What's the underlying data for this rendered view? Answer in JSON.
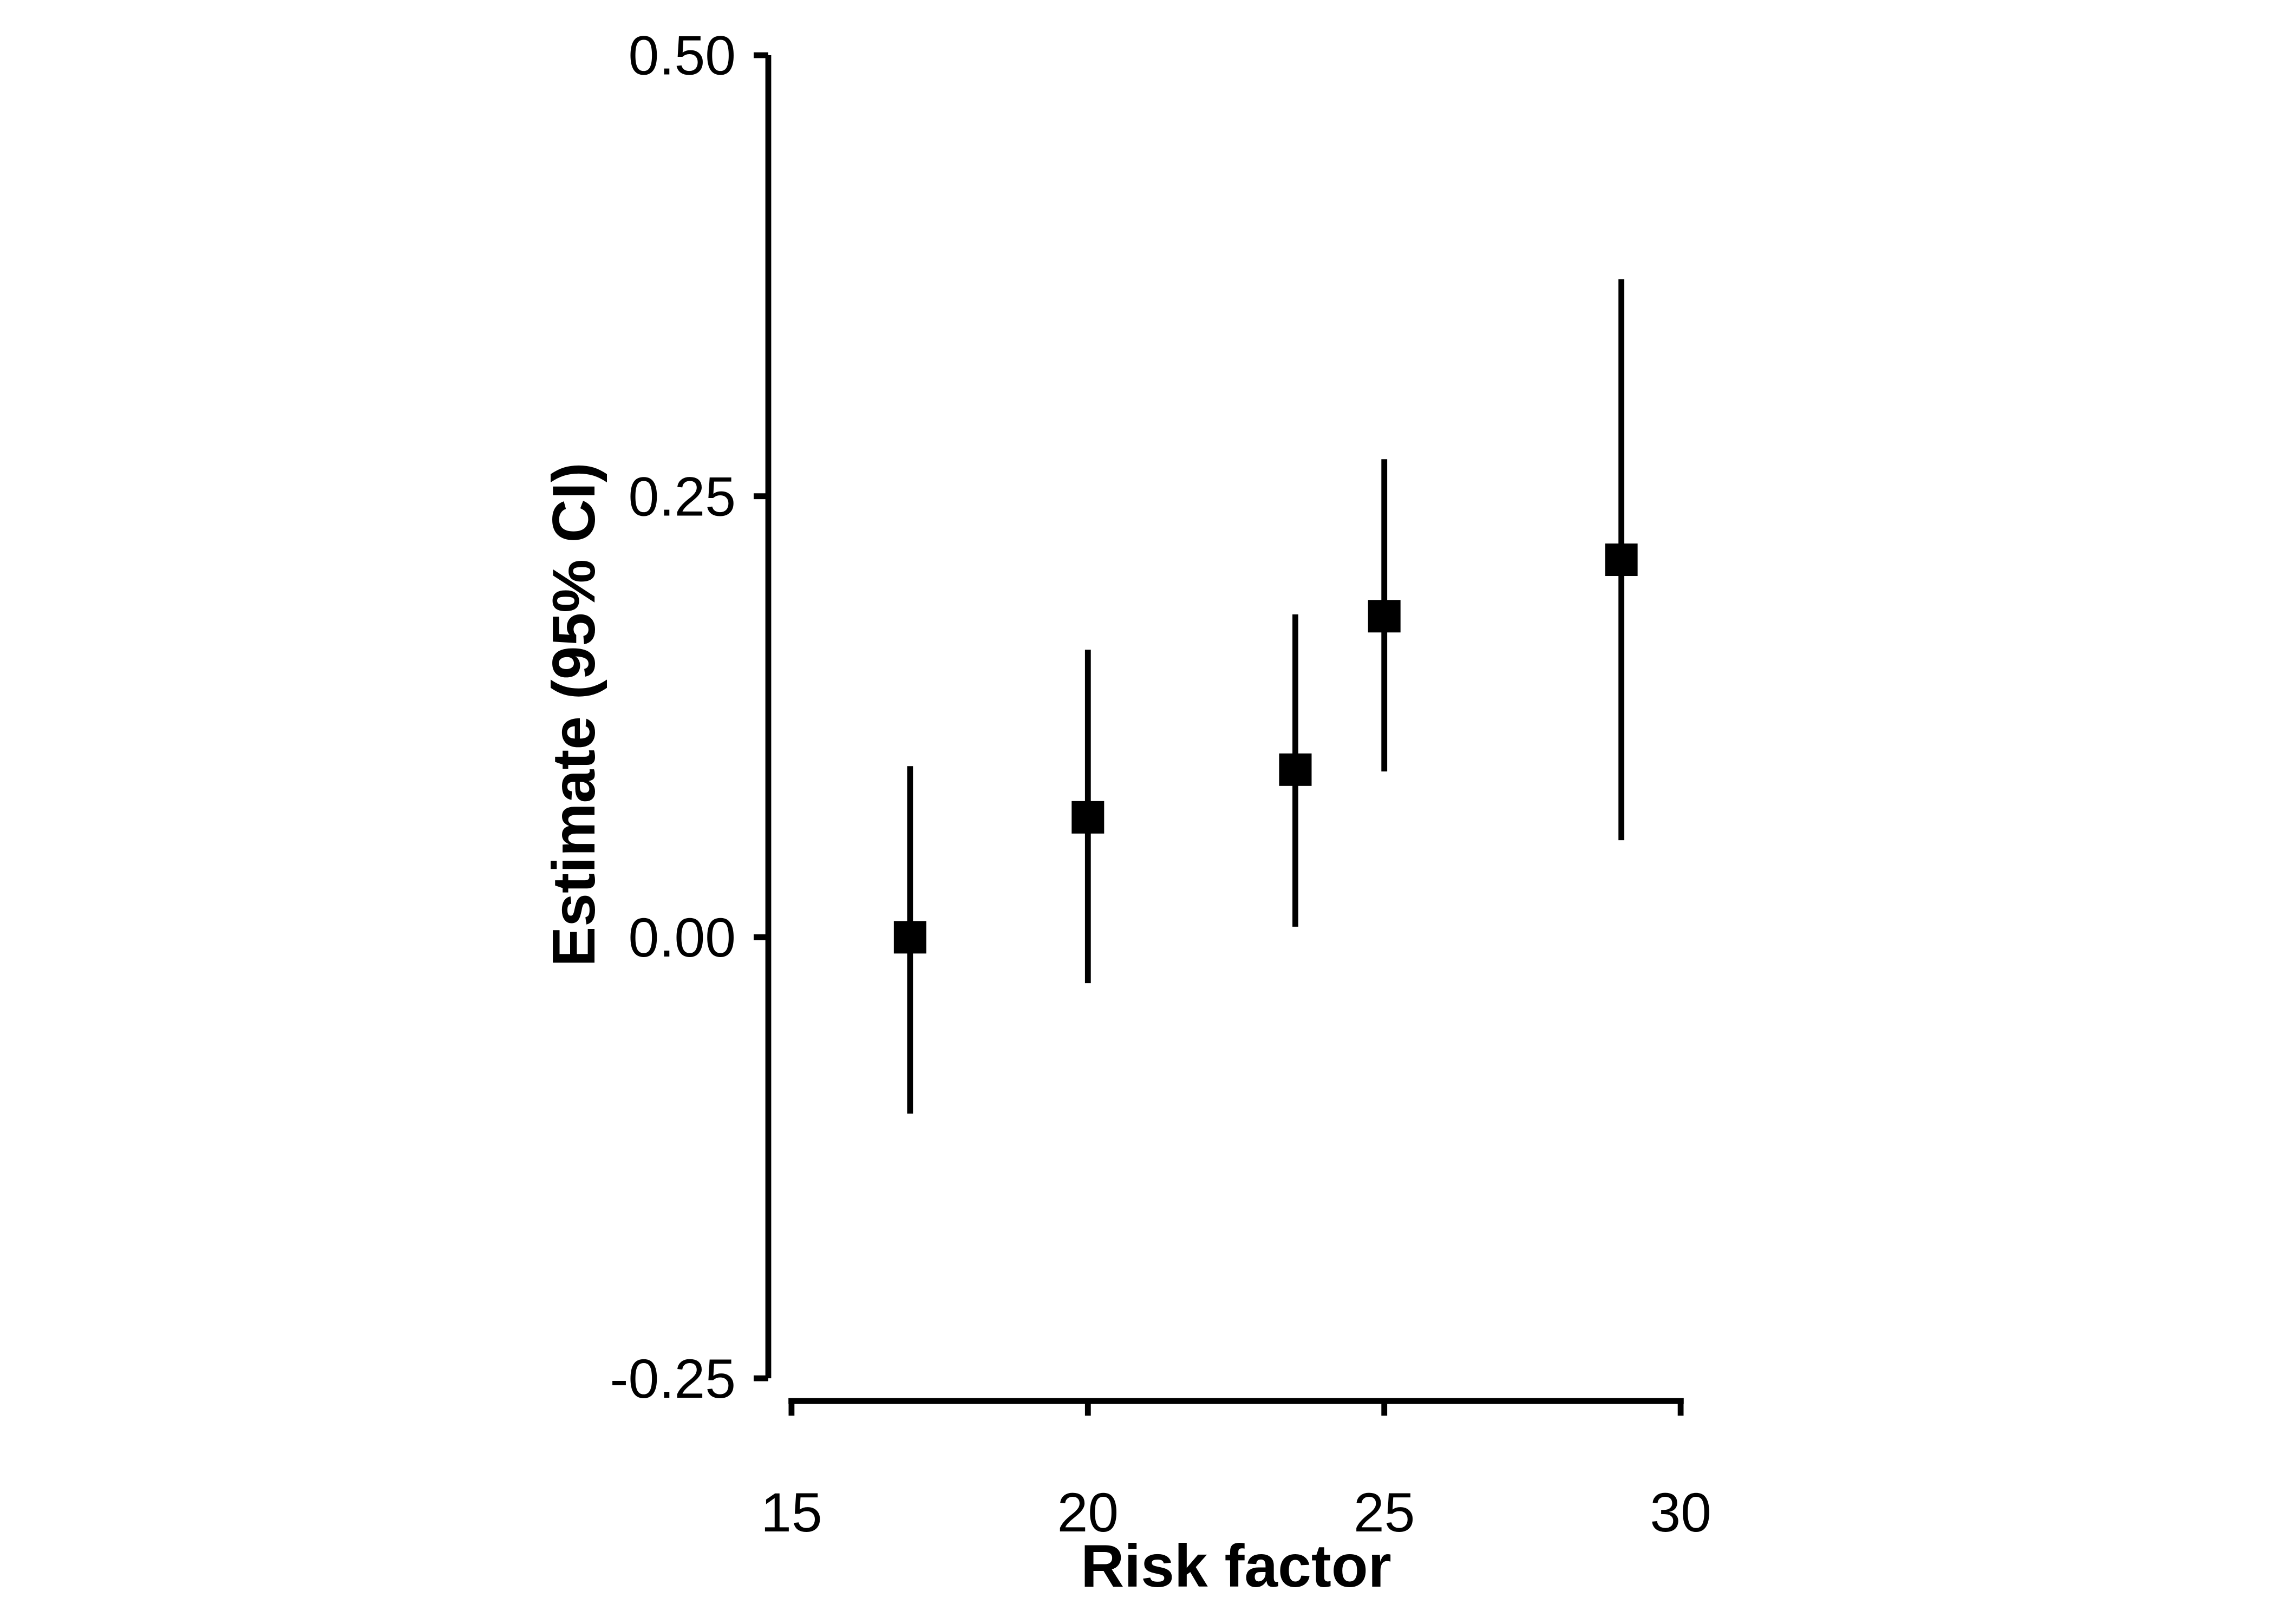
{
  "chart_data": {
    "type": "scatter",
    "subtype": "point-estimates-with-error-bars",
    "title": "",
    "xlabel": "Risk factor",
    "ylabel": "Estimate (95% CI)",
    "x": [
      17,
      20,
      23.5,
      25,
      29
    ],
    "series": [
      {
        "name": "Estimate",
        "values": [
          0.0,
          0.068,
          0.095,
          0.182,
          0.214
        ]
      }
    ],
    "ci_lower": [
      -0.1,
      -0.026,
      0.006,
      0.094,
      0.055
    ],
    "ci_upper": [
      0.097,
      0.163,
      0.183,
      0.271,
      0.373
    ],
    "xlim": [
      15,
      30
    ],
    "ylim": [
      -0.25,
      0.5
    ],
    "x_ticks": {
      "values": [
        15,
        20,
        25,
        30
      ],
      "labels": [
        "15",
        "20",
        "25",
        "30"
      ]
    },
    "y_ticks": {
      "values": [
        0.5,
        0.25,
        0.0,
        -0.25
      ],
      "labels": [
        "0.50",
        "0.25",
        "0.00",
        "-0.25"
      ]
    },
    "marker": "filled-square",
    "grid": false,
    "legend": null,
    "colors": {
      "foreground": "#000000",
      "background": "#ffffff"
    }
  }
}
